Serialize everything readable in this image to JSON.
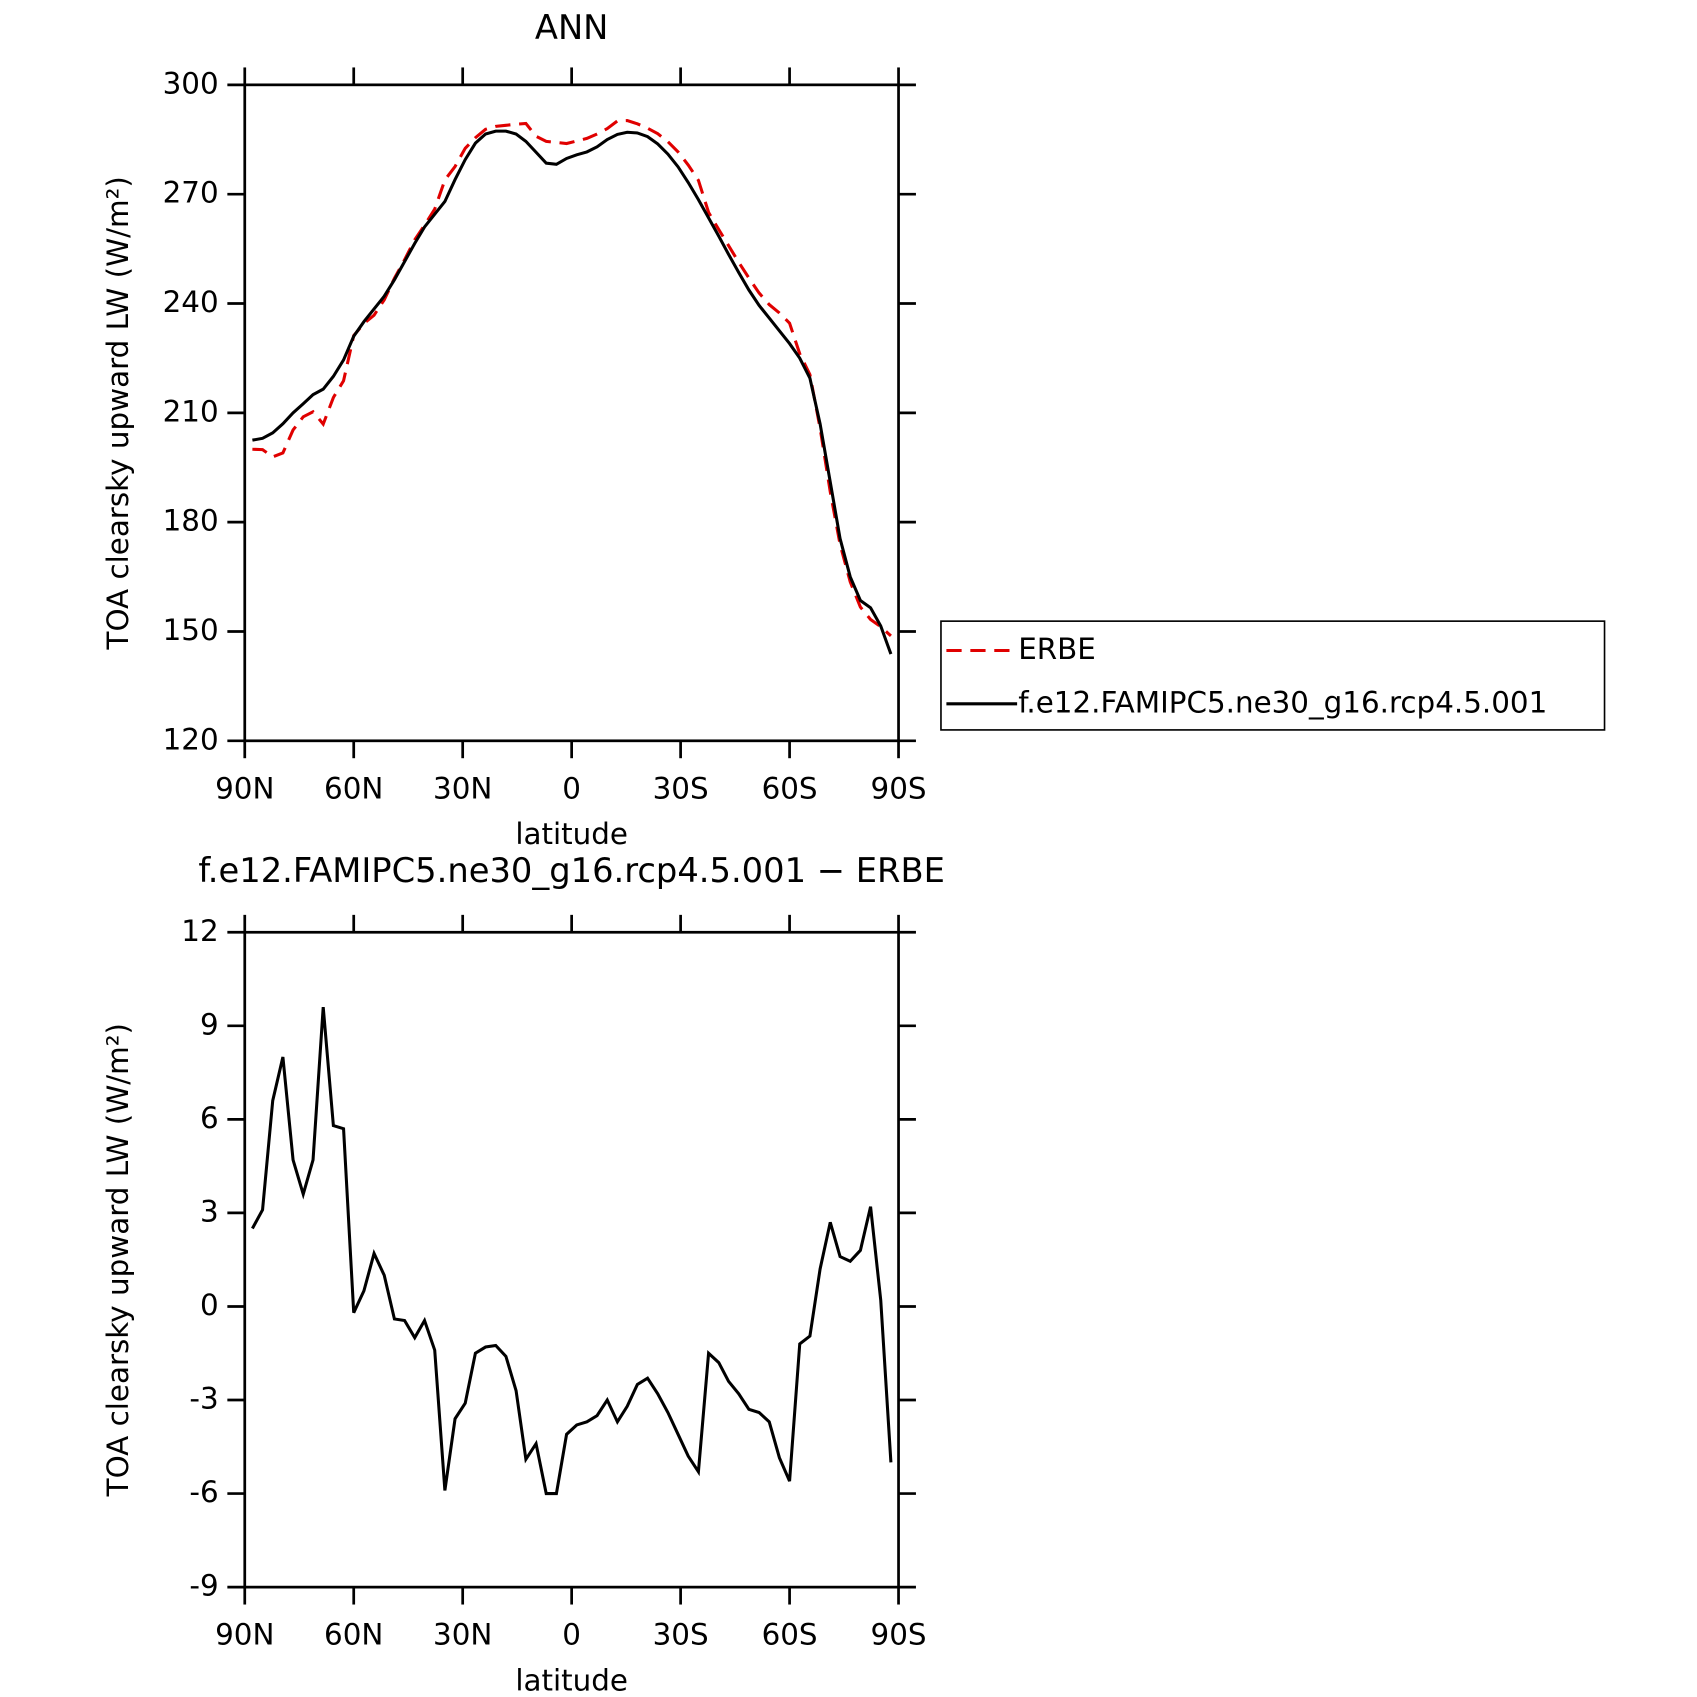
{
  "chart_data": [
    {
      "type": "line",
      "title": "ANN",
      "xlabel": "latitude",
      "ylabel": "TOA clearsky upward LW (W/m²)",
      "x": [
        87.9,
        85.1,
        82.3,
        79.5,
        76.7,
        73.9,
        71.2,
        68.4,
        65.6,
        62.8,
        60.0,
        57.2,
        54.4,
        51.6,
        48.8,
        46.0,
        43.2,
        40.5,
        37.7,
        34.9,
        32.1,
        29.3,
        26.5,
        23.7,
        20.9,
        18.1,
        15.3,
        12.6,
        9.8,
        7.0,
        4.2,
        1.4,
        -1.4,
        -4.2,
        -7.0,
        -9.8,
        -12.6,
        -15.3,
        -18.1,
        -20.9,
        -23.7,
        -26.5,
        -29.3,
        -32.1,
        -34.9,
        -37.7,
        -40.5,
        -43.2,
        -46.0,
        -48.8,
        -51.6,
        -54.4,
        -57.2,
        -60.0,
        -62.8,
        -65.6,
        -68.4,
        -71.2,
        -73.9,
        -76.7,
        -79.5,
        -82.3,
        -85.1,
        -87.9
      ],
      "series": [
        {
          "name": "ERBE",
          "color": "#e00000",
          "dash": true,
          "values": [
            200.0,
            199.9,
            197.9,
            199.0,
            205.3,
            208.9,
            210.3,
            206.9,
            214.2,
            218.8,
            231.2,
            234.5,
            236.8,
            241.0,
            246.9,
            252.0,
            257.5,
            261.5,
            265.9,
            273.9,
            277.6,
            282.6,
            285.5,
            287.8,
            288.6,
            288.9,
            289.2,
            289.4,
            285.9,
            284.5,
            284.2,
            283.9,
            284.6,
            285.3,
            286.5,
            288.0,
            290.1,
            290.2,
            289.3,
            288.1,
            286.6,
            284.4,
            281.6,
            278.0,
            273.8,
            265.0,
            260.3,
            255.9,
            251.3,
            247.0,
            242.9,
            239.7,
            237.4,
            234.6,
            226.2,
            220.5,
            205.8,
            188.3,
            173.9,
            163.6,
            156.7,
            153.3,
            151.3,
            148.8
          ]
        },
        {
          "name": "f.e12.FAMIPC5.ne30_g16.rcp4.5.001",
          "color": "#000000",
          "dash": false,
          "values": [
            202.5,
            203.0,
            204.5,
            207.0,
            210.0,
            212.5,
            215.0,
            216.5,
            220.0,
            224.5,
            231.0,
            235.0,
            238.5,
            242.0,
            246.5,
            251.5,
            256.5,
            261.0,
            264.5,
            268.0,
            274.0,
            279.5,
            284.0,
            286.5,
            287.3,
            287.3,
            286.5,
            284.5,
            281.5,
            278.5,
            278.2,
            279.8,
            280.8,
            281.6,
            283.0,
            285.0,
            286.4,
            287.0,
            286.8,
            285.8,
            283.8,
            281.0,
            277.5,
            273.2,
            268.5,
            263.5,
            258.5,
            253.5,
            248.5,
            243.7,
            239.5,
            236.0,
            232.5,
            229.0,
            225.0,
            219.5,
            207.0,
            191.0,
            175.5,
            165.0,
            158.5,
            156.5,
            151.5,
            143.8
          ]
        }
      ],
      "xlim": [
        90,
        -90
      ],
      "xticks": [
        {
          "value": 90,
          "label": "90N"
        },
        {
          "value": 60,
          "label": "60N"
        },
        {
          "value": 30,
          "label": "30N"
        },
        0,
        {
          "value": -30,
          "label": "30S"
        },
        {
          "value": -60,
          "label": "60S"
        },
        {
          "value": -90,
          "label": "90S"
        }
      ],
      "ylim": [
        120,
        300
      ],
      "yticks": [
        120,
        150,
        180,
        210,
        240,
        270,
        300
      ],
      "legend": "right"
    },
    {
      "type": "line",
      "title": "f.e12.FAMIPC5.ne30_g16.rcp4.5.001 − ERBE",
      "xlabel": "latitude",
      "ylabel": "TOA clearsky upward LW (W/m²)",
      "x": [
        87.9,
        85.1,
        82.3,
        79.5,
        76.7,
        73.9,
        71.2,
        68.4,
        65.6,
        62.8,
        60.0,
        57.2,
        54.4,
        51.6,
        48.8,
        46.0,
        43.2,
        40.5,
        37.7,
        34.9,
        32.1,
        29.3,
        26.5,
        23.7,
        20.9,
        18.1,
        15.3,
        12.6,
        9.8,
        7.0,
        4.2,
        1.4,
        -1.4,
        -4.2,
        -7.0,
        -9.8,
        -12.6,
        -15.3,
        -18.1,
        -20.9,
        -23.7,
        -26.5,
        -29.3,
        -32.1,
        -34.9,
        -37.7,
        -40.5,
        -43.2,
        -46.0,
        -48.8,
        -51.6,
        -54.4,
        -57.2,
        -60.0,
        -62.8,
        -65.6,
        -68.4,
        -71.2,
        -73.9,
        -76.7,
        -79.5,
        -82.3,
        -85.1,
        -87.9
      ],
      "series": [
        {
          "color": "#000000",
          "dash": false,
          "values": [
            2.5,
            3.1,
            6.6,
            8.0,
            4.7,
            3.6,
            4.7,
            9.6,
            5.8,
            5.7,
            -0.2,
            0.5,
            1.7,
            1.0,
            -0.4,
            -0.45,
            -1.0,
            -0.45,
            -1.4,
            -5.9,
            -3.6,
            -3.1,
            -1.5,
            -1.3,
            -1.25,
            -1.6,
            -2.7,
            -4.9,
            -4.4,
            -6.0,
            -6.0,
            -4.1,
            -3.8,
            -3.7,
            -3.5,
            -3.0,
            -3.7,
            -3.2,
            -2.5,
            -2.3,
            -2.8,
            -3.4,
            -4.1,
            -4.8,
            -5.3,
            -1.5,
            -1.8,
            -2.4,
            -2.8,
            -3.3,
            -3.4,
            -3.7,
            -4.85,
            -5.6,
            -1.2,
            -0.95,
            1.2,
            2.7,
            1.6,
            1.45,
            1.8,
            3.2,
            0.2,
            -5.0
          ]
        }
      ],
      "xlim": [
        90,
        -90
      ],
      "xticks": [
        {
          "value": 90,
          "label": "90N"
        },
        {
          "value": 60,
          "label": "60N"
        },
        {
          "value": 30,
          "label": "30N"
        },
        0,
        {
          "value": -30,
          "label": "30S"
        },
        {
          "value": -60,
          "label": "60S"
        },
        {
          "value": -90,
          "label": "90S"
        }
      ],
      "ylim": [
        -9,
        12
      ],
      "yticks": [
        -9,
        -6,
        -3,
        0,
        3,
        6,
        9,
        12
      ]
    }
  ]
}
